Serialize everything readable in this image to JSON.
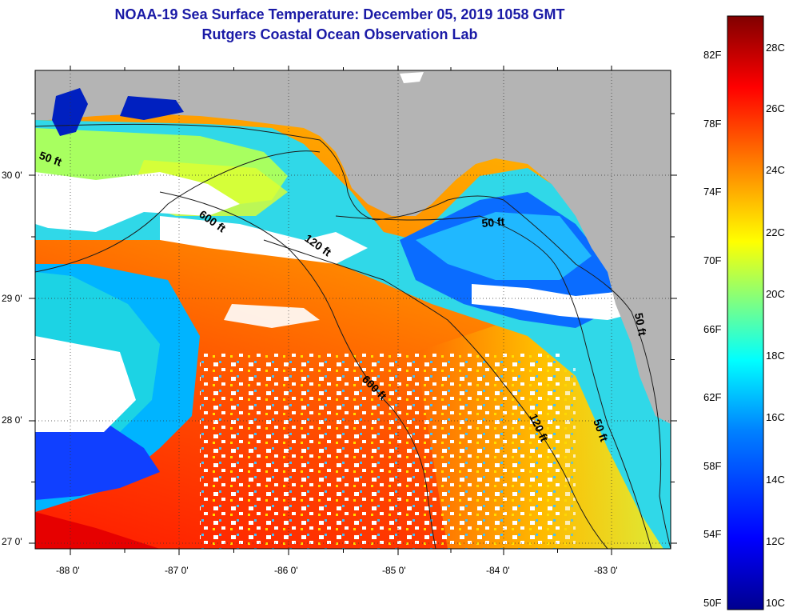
{
  "header": {
    "title_line1": "NOAA-19 Sea Surface Temperature:  December 05, 2019 1058 GMT",
    "title_line2": "Rutgers Coastal Ocean Observation Lab"
  },
  "map": {
    "longitude_labels": [
      "-88 0'",
      "-87 0'",
      "-86 0'",
      "-85 0'",
      "-84 0'",
      "-83 0'"
    ],
    "latitude_labels": [
      "30 0'",
      "29 0'",
      "28 0'",
      "27 0'"
    ],
    "contour_labels": [
      "50 ft",
      "600 ft",
      "120 ft",
      "50 ft",
      "50 ft",
      "600 ft",
      "120 ft",
      "50 ft"
    ],
    "colors": {
      "land": "#b4b4b4",
      "cloud": "#ffffff",
      "coast_line": "#1c1c1c"
    }
  },
  "colorbar": {
    "fahrenheit_labels": [
      "82F",
      "78F",
      "74F",
      "70F",
      "66F",
      "62F",
      "58F",
      "54F",
      "50F"
    ],
    "celsius_labels": [
      "28C",
      "26C",
      "24C",
      "22C",
      "20C",
      "18C",
      "16C",
      "14C",
      "12C",
      "10C"
    ],
    "celsius_range": [
      10,
      29.5
    ],
    "gradient_stops": [
      "#00008f",
      "#0000ff",
      "#0080ff",
      "#00ffff",
      "#80ff80",
      "#ffff00",
      "#ff8000",
      "#ff0000",
      "#800000"
    ]
  }
}
